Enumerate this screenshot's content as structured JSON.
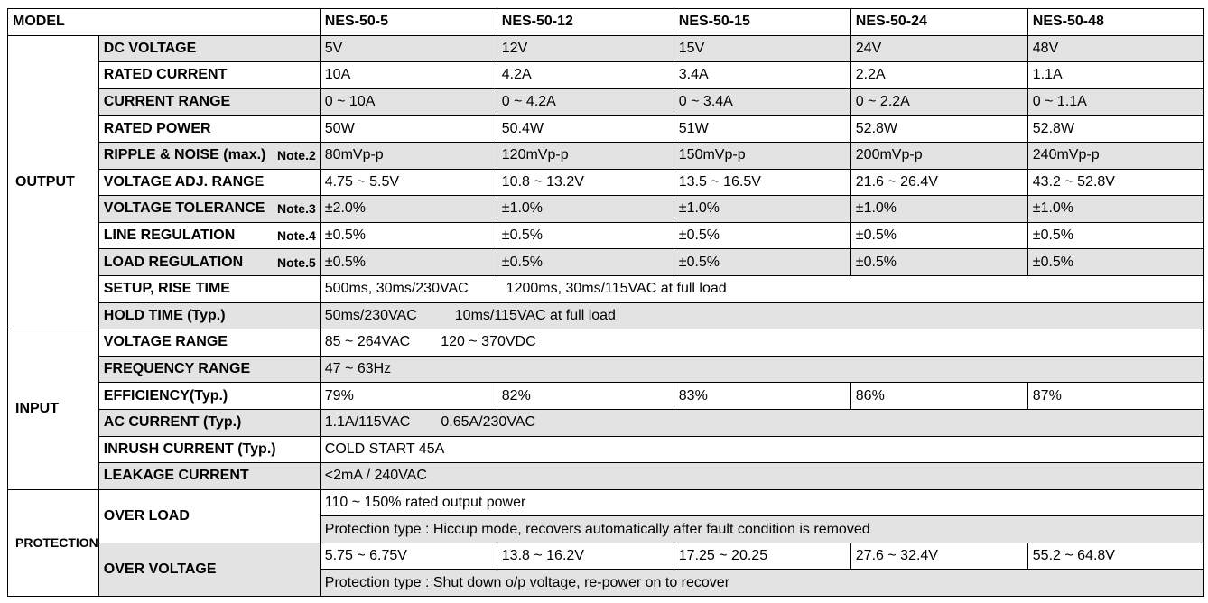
{
  "header": {
    "label": "MODEL",
    "models": [
      "NES-50-5",
      "NES-50-12",
      "NES-50-15",
      "NES-50-24",
      "NES-50-48"
    ]
  },
  "output": {
    "category": "OUTPUT",
    "dc_voltage": {
      "label": "DC VOLTAGE",
      "values": [
        "5V",
        "12V",
        "15V",
        "24V",
        "48V"
      ]
    },
    "rated_current": {
      "label": "RATED CURRENT",
      "values": [
        "10A",
        "4.2A",
        "3.4A",
        "2.2A",
        "1.1A"
      ]
    },
    "current_range": {
      "label": "CURRENT RANGE",
      "values": [
        "0 ~ 10A",
        "0 ~ 4.2A",
        "0 ~ 3.4A",
        "0 ~ 2.2A",
        "0 ~ 1.1A"
      ]
    },
    "rated_power": {
      "label": "RATED POWER",
      "values": [
        "50W",
        "50.4W",
        "51W",
        "52.8W",
        "52.8W"
      ]
    },
    "ripple_noise": {
      "label": "RIPPLE & NOISE (max.)",
      "note": "Note.2",
      "values": [
        "80mVp-p",
        "120mVp-p",
        "150mVp-p",
        "200mVp-p",
        "240mVp-p"
      ]
    },
    "voltage_adj": {
      "label": "VOLTAGE ADJ. RANGE",
      "values": [
        "4.75 ~ 5.5V",
        "10.8 ~ 13.2V",
        "13.5 ~ 16.5V",
        "21.6 ~ 26.4V",
        "43.2 ~ 52.8V"
      ]
    },
    "voltage_tol": {
      "label": "VOLTAGE TOLERANCE",
      "note": "Note.3",
      "values": [
        "±2.0%",
        "±1.0%",
        "±1.0%",
        "±1.0%",
        "±1.0%"
      ]
    },
    "line_reg": {
      "label": "LINE REGULATION",
      "note": "Note.4",
      "values": [
        "±0.5%",
        "±0.5%",
        "±0.5%",
        "±0.5%",
        "±0.5%"
      ]
    },
    "load_reg": {
      "label": "LOAD REGULATION",
      "note": "Note.5",
      "values": [
        "±0.5%",
        "±0.5%",
        "±0.5%",
        "±0.5%",
        "±0.5%"
      ]
    },
    "setup_rise": {
      "label": "SETUP, RISE TIME",
      "value_a": "500ms, 30ms/230VAC",
      "value_b": "1200ms, 30ms/115VAC at full load"
    },
    "hold_time": {
      "label": "HOLD TIME (Typ.)",
      "value_a": "50ms/230VAC",
      "value_b": "10ms/115VAC at full load"
    }
  },
  "input": {
    "category": "INPUT",
    "voltage_range": {
      "label": "VOLTAGE RANGE",
      "value_a": "85 ~ 264VAC",
      "value_b": "120 ~ 370VDC"
    },
    "frequency_range": {
      "label": "FREQUENCY RANGE",
      "value": "47 ~ 63Hz"
    },
    "efficiency": {
      "label": "EFFICIENCY(Typ.)",
      "values": [
        "79%",
        "82%",
        "83%",
        "86%",
        "87%"
      ]
    },
    "ac_current": {
      "label": "AC CURRENT (Typ.)",
      "value_a": "1.1A/115VAC",
      "value_b": "0.65A/230VAC"
    },
    "inrush_current": {
      "label": "INRUSH CURRENT (Typ.)",
      "value": "COLD START 45A"
    },
    "leakage_current": {
      "label": "LEAKAGE CURRENT",
      "value": "<2mA / 240VAC"
    }
  },
  "protection": {
    "category": "PROTECTION",
    "over_load": {
      "label": "OVER LOAD",
      "line1": "110 ~ 150% rated output power",
      "line2": "Protection type : Hiccup mode, recovers automatically after fault condition is removed"
    },
    "over_voltage": {
      "label": "OVER VOLTAGE",
      "values": [
        "5.75 ~ 6.75V",
        "13.8 ~ 16.2V",
        "17.25 ~ 20.25",
        "27.6 ~ 32.4V",
        "55.2 ~ 64.8V"
      ],
      "line2": "Protection type : Shut down o/p voltage, re-power on to recover"
    }
  }
}
